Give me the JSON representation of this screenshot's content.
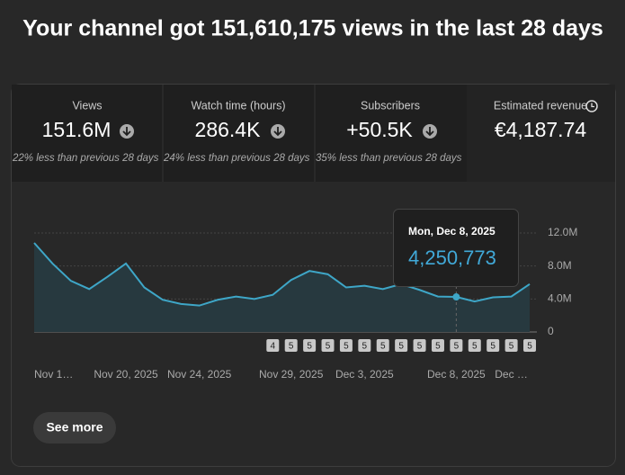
{
  "header": {
    "title": "Your channel got 151,610,175 views in the last 28 days"
  },
  "metrics": [
    {
      "label": "Views",
      "value": "151.6M",
      "change": "22% less than previous 28 days"
    },
    {
      "label": "Watch time (hours)",
      "value": "286.4K",
      "change": "24% less than previous 28 days"
    },
    {
      "label": "Subscribers",
      "value": "+50.5K",
      "change": "35% less than previous 28 days"
    },
    {
      "label": "Estimated revenue",
      "value": "€4,187.74"
    }
  ],
  "chart_data": {
    "type": "line",
    "categories": [
      "Nov 1…",
      null,
      null,
      null,
      null,
      "Nov 20, 2025",
      null,
      null,
      null,
      "Nov 24, 2025",
      null,
      null,
      null,
      null,
      "Nov 29, 2025",
      null,
      null,
      null,
      "Dec 3, 2025",
      null,
      null,
      null,
      null,
      "Dec 8, 2025",
      null,
      null,
      "Dec …",
      null
    ],
    "series": [
      {
        "color": "#3ea6c7",
        "values": [
          10800000,
          8300000,
          6200000,
          5200000,
          6700000,
          8300000,
          5400000,
          3900000,
          3400000,
          3200000,
          3900000,
          4300000,
          4000000,
          4500000,
          6300000,
          7400000,
          7000000,
          5400000,
          5600000,
          5200000,
          5800000,
          5100000,
          4300000,
          4250773,
          3700000,
          4200000,
          4300000,
          5800000
        ],
        "value_labels": [
          null,
          null,
          null,
          null,
          null,
          null,
          null,
          null,
          null,
          null,
          null,
          null,
          null,
          null,
          null,
          null,
          null,
          null,
          null,
          null,
          null,
          null,
          null,
          "4,250,773",
          null,
          null,
          null,
          null
        ]
      }
    ],
    "ylim": [
      0,
      12000000
    ],
    "yticks": [
      0,
      {
        "value": 4000000,
        "label": "4.0M"
      },
      {
        "value": 8000000,
        "label": "8.0M"
      },
      {
        "value": 12000000,
        "label": "12.0M"
      }
    ],
    "grid": true
  },
  "tooltip": {
    "date": "Mon, Dec 8, 2025",
    "index": 23
  },
  "video_markers": [
    "4",
    "5",
    "5",
    "5",
    "5",
    "5",
    "5",
    "5",
    "5",
    "5",
    "5",
    "5",
    "5",
    "5",
    "5"
  ],
  "button": "See more"
}
